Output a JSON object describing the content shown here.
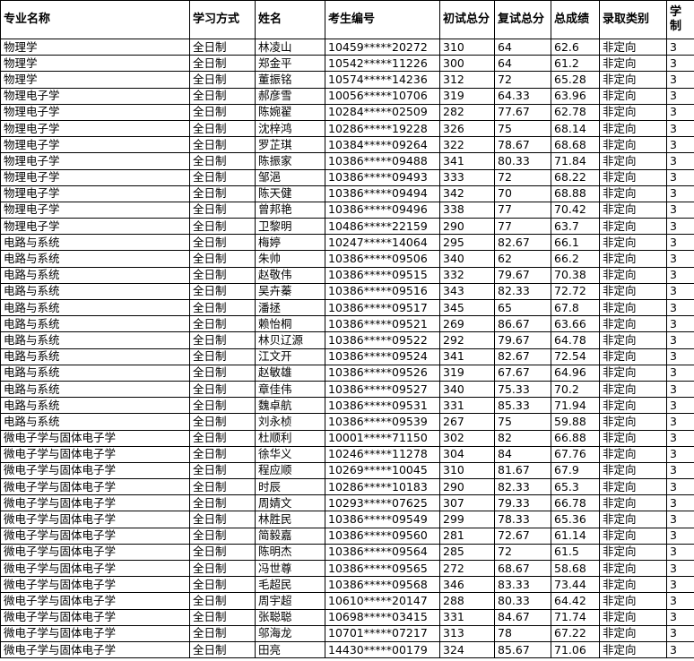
{
  "table": {
    "header": [
      "专业名称",
      "学习方式",
      "姓名",
      "考生编号",
      "初试总分",
      "复试总分",
      "总成绩",
      "录取类别",
      "学制"
    ],
    "rows": [
      [
        "物理学",
        "全日制",
        "林凌山",
        "10459*****20272",
        "310",
        "64",
        "62.6",
        "非定向",
        "3"
      ],
      [
        "物理学",
        "全日制",
        "郑金平",
        "10542*****11226",
        "300",
        "64",
        "61.2",
        "非定向",
        "3"
      ],
      [
        "物理学",
        "全日制",
        "董振铭",
        "10574*****14236",
        "312",
        "72",
        "65.28",
        "非定向",
        "3"
      ],
      [
        "物理电子学",
        "全日制",
        "郝彦雪",
        "10056*****10706",
        "319",
        "64.33",
        "63.96",
        "非定向",
        "3"
      ],
      [
        "物理电子学",
        "全日制",
        "陈婉翟",
        "10284*****02509",
        "282",
        "77.67",
        "62.78",
        "非定向",
        "3"
      ],
      [
        "物理电子学",
        "全日制",
        "沈梓鸿",
        "10286*****19228",
        "326",
        "75",
        "68.14",
        "非定向",
        "3"
      ],
      [
        "物理电子学",
        "全日制",
        "罗芷琪",
        "10384*****09264",
        "322",
        "78.67",
        "68.68",
        "非定向",
        "3"
      ],
      [
        "物理电子学",
        "全日制",
        "陈振家",
        "10386*****09488",
        "341",
        "80.33",
        "71.84",
        "非定向",
        "3"
      ],
      [
        "物理电子学",
        "全日制",
        "邹浥",
        "10386*****09493",
        "333",
        "72",
        "68.22",
        "非定向",
        "3"
      ],
      [
        "物理电子学",
        "全日制",
        "陈天健",
        "10386*****09494",
        "342",
        "70",
        "68.88",
        "非定向",
        "3"
      ],
      [
        "物理电子学",
        "全日制",
        "曾邦艳",
        "10386*****09496",
        "338",
        "77",
        "70.42",
        "非定向",
        "3"
      ],
      [
        "物理电子学",
        "全日制",
        "卫黎明",
        "10486*****22159",
        "290",
        "77",
        "63.7",
        "非定向",
        "3"
      ],
      [
        "电路与系统",
        "全日制",
        "梅婷",
        "10247*****14064",
        "295",
        "82.67",
        "66.1",
        "非定向",
        "3"
      ],
      [
        "电路与系统",
        "全日制",
        "朱帅",
        "10386*****09506",
        "340",
        "62",
        "66.2",
        "非定向",
        "3"
      ],
      [
        "电路与系统",
        "全日制",
        "赵敬伟",
        "10386*****09515",
        "332",
        "79.67",
        "70.38",
        "非定向",
        "3"
      ],
      [
        "电路与系统",
        "全日制",
        "吴卉蓁",
        "10386*****09516",
        "343",
        "82.33",
        "72.72",
        "非定向",
        "3"
      ],
      [
        "电路与系统",
        "全日制",
        "潘拯",
        "10386*****09517",
        "345",
        "65",
        "67.8",
        "非定向",
        "3"
      ],
      [
        "电路与系统",
        "全日制",
        "赖怡桐",
        "10386*****09521",
        "269",
        "86.67",
        "63.66",
        "非定向",
        "3"
      ],
      [
        "电路与系统",
        "全日制",
        "林贝辽源",
        "10386*****09522",
        "292",
        "79.67",
        "64.78",
        "非定向",
        "3"
      ],
      [
        "电路与系统",
        "全日制",
        "江文开",
        "10386*****09524",
        "341",
        "82.67",
        "72.54",
        "非定向",
        "3"
      ],
      [
        "电路与系统",
        "全日制",
        "赵敏雄",
        "10386*****09526",
        "319",
        "67.67",
        "64.96",
        "非定向",
        "3"
      ],
      [
        "电路与系统",
        "全日制",
        "章佳伟",
        "10386*****09527",
        "340",
        "75.33",
        "70.2",
        "非定向",
        "3"
      ],
      [
        "电路与系统",
        "全日制",
        "魏卓航",
        "10386*****09531",
        "331",
        "85.33",
        "71.94",
        "非定向",
        "3"
      ],
      [
        "电路与系统",
        "全日制",
        "刘永桢",
        "10386*****09539",
        "267",
        "75",
        "59.88",
        "非定向",
        "3"
      ],
      [
        "微电子学与固体电子学",
        "全日制",
        "杜顺利",
        "10001*****71150",
        "302",
        "82",
        "66.88",
        "非定向",
        "3"
      ],
      [
        "微电子学与固体电子学",
        "全日制",
        "徐华义",
        "10246*****11278",
        "304",
        "84",
        "67.76",
        "非定向",
        "3"
      ],
      [
        "微电子学与固体电子学",
        "全日制",
        "程应顺",
        "10269*****10045",
        "310",
        "81.67",
        "67.9",
        "非定向",
        "3"
      ],
      [
        "微电子学与固体电子学",
        "全日制",
        "时辰",
        "10286*****10183",
        "290",
        "82.33",
        "65.3",
        "非定向",
        "3"
      ],
      [
        "微电子学与固体电子学",
        "全日制",
        "周婧文",
        "10293*****07625",
        "307",
        "79.33",
        "66.78",
        "非定向",
        "3"
      ],
      [
        "微电子学与固体电子学",
        "全日制",
        "林胜民",
        "10386*****09549",
        "299",
        "78.33",
        "65.36",
        "非定向",
        "3"
      ],
      [
        "微电子学与固体电子学",
        "全日制",
        "简毅嘉",
        "10386*****09560",
        "281",
        "72.67",
        "61.14",
        "非定向",
        "3"
      ],
      [
        "微电子学与固体电子学",
        "全日制",
        "陈明杰",
        "10386*****09564",
        "285",
        "72",
        "61.5",
        "非定向",
        "3"
      ],
      [
        "微电子学与固体电子学",
        "全日制",
        "冯世尊",
        "10386*****09565",
        "272",
        "68.67",
        "58.68",
        "非定向",
        "3"
      ],
      [
        "微电子学与固体电子学",
        "全日制",
        "毛超民",
        "10386*****09568",
        "346",
        "83.33",
        "73.44",
        "非定向",
        "3"
      ],
      [
        "微电子学与固体电子学",
        "全日制",
        "周宇超",
        "10610*****20147",
        "288",
        "80.33",
        "64.42",
        "非定向",
        "3"
      ],
      [
        "微电子学与固体电子学",
        "全日制",
        "张聪聪",
        "10698*****03415",
        "331",
        "84.67",
        "71.74",
        "非定向",
        "3"
      ],
      [
        "微电子学与固体电子学",
        "全日制",
        "邬海龙",
        "10701*****07217",
        "313",
        "78",
        "67.22",
        "非定向",
        "3"
      ],
      [
        "微电子学与固体电子学",
        "全日制",
        "田亮",
        "14430*****00179",
        "324",
        "85.67",
        "71.06",
        "非定向",
        "3"
      ]
    ]
  }
}
